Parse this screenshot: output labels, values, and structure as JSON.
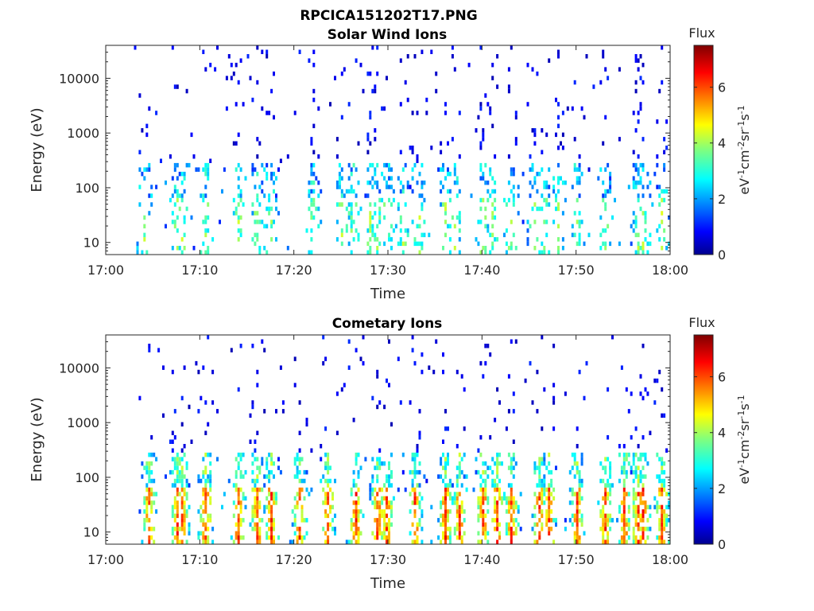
{
  "figure": {
    "title": "RPCICA151202T17.PNG"
  },
  "chart_data": [
    {
      "type": "heatmap",
      "title": "Solar Wind Ions",
      "xlabel": "Time",
      "ylabel": "Energy (eV)",
      "x_ticks": [
        "17:00",
        "17:10",
        "17:20",
        "17:30",
        "17:40",
        "17:50",
        "18:00"
      ],
      "y_ticks": [
        "10",
        "100",
        "1000",
        "10000"
      ],
      "y_scale": "log",
      "xlim": [
        "17:00",
        "18:00"
      ],
      "ylim": [
        6,
        40000
      ],
      "colorbar": {
        "title": "Flux",
        "label": "eV-1cm-2sr-1s-1",
        "ticks": [
          "0",
          "2",
          "4",
          "6"
        ],
        "range": [
          0,
          7.5
        ],
        "colormap": "jet"
      },
      "activity_min": [
        4,
        7.5,
        8,
        10.5,
        14,
        16,
        17.5,
        22,
        25,
        26.2,
        28,
        28.8,
        29.8,
        31.5,
        33.2,
        36,
        37,
        40,
        41,
        43,
        45.5,
        46.5,
        48,
        50,
        53,
        56.5,
        57,
        59
      ],
      "note_peak_flux": "mostly low flux (0-3) with isolated moderate patches near 17:56 and 17:59"
    },
    {
      "type": "heatmap",
      "title": "Cometary Ions",
      "xlabel": "Time",
      "ylabel": "Energy (eV)",
      "x_ticks": [
        "17:00",
        "17:10",
        "17:20",
        "17:30",
        "17:40",
        "17:50",
        "18:00"
      ],
      "y_ticks": [
        "10",
        "100",
        "1000",
        "10000"
      ],
      "y_scale": "log",
      "xlim": [
        "17:00",
        "18:00"
      ],
      "ylim": [
        6,
        40000
      ],
      "colorbar": {
        "title": "Flux",
        "label": "eV-1cm-2sr-1s-1",
        "ticks": [
          "0",
          "2",
          "4",
          "6"
        ],
        "range": [
          0,
          7.5
        ],
        "colormap": "jet"
      },
      "activity_min": [
        4.5,
        7.5,
        8,
        10.5,
        14,
        16,
        17.5,
        20.5,
        23.5,
        26.5,
        28.8,
        29.8,
        32.8,
        36,
        37.5,
        40,
        41.5,
        43,
        46,
        47,
        50,
        53,
        55,
        56.5,
        57,
        59
      ],
      "note_peak_flux": "bursts reach 5-7 at 20-60 eV near 17:27-17:30, 17:56 and 17:59"
    }
  ]
}
